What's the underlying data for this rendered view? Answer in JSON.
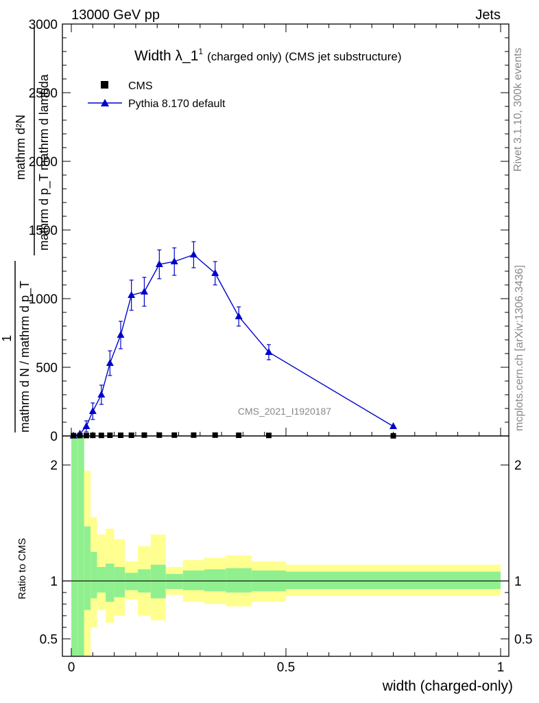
{
  "header": {
    "left": "13000 GeV pp",
    "right": "Jets"
  },
  "side": {
    "rivet": "Rivet 3.1.10,  300k events",
    "mcplots": "mcplots.cern.ch [arXiv:1306.3436]"
  },
  "watermark": "CMS_2021_I1920187",
  "colors": {
    "mc": "#0000cc",
    "band_inner": "#90f090",
    "band_outer": "#ffff90",
    "data": "#000000"
  },
  "chart_data": [
    {
      "type": "scatter",
      "title_main": "Width λ_1",
      "title_sup": "1",
      "title_rest": "(charged only) (CMS jet substructure)",
      "ylabel_num": "mathrm d²N",
      "ylabel_den": "mathrm d p_T mathrm d lambda",
      "ylabel_frac2_num": "1",
      "ylabel_frac2_den": "mathrm d N / mathrm d p_T",
      "xlim": [
        0,
        1
      ],
      "ylim": [
        0,
        3000
      ],
      "yticks": [
        0,
        500,
        1000,
        1500,
        2000,
        2500,
        3000
      ],
      "ytick_labels": [
        "0",
        "500",
        "1000",
        "1500",
        "2000",
        "2500",
        "3000"
      ],
      "legend_position": "top-left",
      "series": [
        {
          "name": "CMS",
          "marker": "square",
          "x": [
            0.005,
            0.02,
            0.035,
            0.05,
            0.07,
            0.09,
            0.115,
            0.14,
            0.17,
            0.205,
            0.24,
            0.285,
            0.335,
            0.39,
            0.46,
            0.75
          ],
          "y": [
            2,
            3,
            3,
            4,
            4,
            5,
            5,
            5,
            6,
            6,
            6,
            6,
            6,
            5,
            4,
            1
          ]
        },
        {
          "name": "Pythia 8.170 default",
          "marker": "triangle",
          "x": [
            0.005,
            0.02,
            0.035,
            0.05,
            0.07,
            0.09,
            0.115,
            0.14,
            0.17,
            0.205,
            0.24,
            0.285,
            0.335,
            0.39,
            0.46,
            0.75
          ],
          "y": [
            2,
            15,
            70,
            180,
            300,
            530,
            735,
            1025,
            1050,
            1250,
            1270,
            1320,
            1185,
            870,
            610,
            70
          ],
          "err": [
            2,
            10,
            40,
            60,
            70,
            90,
            100,
            110,
            105,
            105,
            100,
            95,
            85,
            70,
            55,
            10
          ]
        }
      ]
    },
    {
      "type": "area",
      "ylabel": "Ratio to CMS",
      "xlabel": "width (charged-only)",
      "xlim": [
        0,
        1
      ],
      "ylim": [
        0.35,
        2.25
      ],
      "xticks": [
        0,
        0.5,
        1
      ],
      "xtick_labels": [
        "0",
        "0.5",
        "1"
      ],
      "yticks": [
        0.5,
        1,
        2
      ],
      "ytick_labels": [
        "0.5",
        "1",
        "2"
      ],
      "bins": [
        {
          "x0": 0.0,
          "x1": 0.015,
          "in_lo": 0.35,
          "in_hi": 2.25,
          "out_lo": 0.35,
          "out_hi": 2.25
        },
        {
          "x0": 0.015,
          "x1": 0.03,
          "in_lo": 0.35,
          "in_hi": 2.25,
          "out_lo": 0.35,
          "out_hi": 2.25
        },
        {
          "x0": 0.03,
          "x1": 0.045,
          "in_lo": 0.75,
          "in_hi": 1.47,
          "out_lo": 0.35,
          "out_hi": 1.95
        },
        {
          "x0": 0.045,
          "x1": 0.06,
          "in_lo": 0.85,
          "in_hi": 1.25,
          "out_lo": 0.6,
          "out_hi": 1.55
        },
        {
          "x0": 0.06,
          "x1": 0.08,
          "in_lo": 0.9,
          "in_hi": 1.12,
          "out_lo": 0.75,
          "out_hi": 1.4
        },
        {
          "x0": 0.08,
          "x1": 0.1,
          "in_lo": 0.82,
          "in_hi": 1.15,
          "out_lo": 0.64,
          "out_hi": 1.45
        },
        {
          "x0": 0.1,
          "x1": 0.125,
          "in_lo": 0.86,
          "in_hi": 1.12,
          "out_lo": 0.7,
          "out_hi": 1.36
        },
        {
          "x0": 0.125,
          "x1": 0.155,
          "in_lo": 0.92,
          "in_hi": 1.07,
          "out_lo": 0.84,
          "out_hi": 1.17
        },
        {
          "x0": 0.155,
          "x1": 0.185,
          "in_lo": 0.9,
          "in_hi": 1.1,
          "out_lo": 0.7,
          "out_hi": 1.3
        },
        {
          "x0": 0.185,
          "x1": 0.22,
          "in_lo": 0.85,
          "in_hi": 1.14,
          "out_lo": 0.66,
          "out_hi": 1.4
        },
        {
          "x0": 0.22,
          "x1": 0.26,
          "in_lo": 0.93,
          "in_hi": 1.06,
          "out_lo": 0.88,
          "out_hi": 1.12
        },
        {
          "x0": 0.26,
          "x1": 0.31,
          "in_lo": 0.92,
          "in_hi": 1.09,
          "out_lo": 0.82,
          "out_hi": 1.18
        },
        {
          "x0": 0.31,
          "x1": 0.36,
          "in_lo": 0.91,
          "in_hi": 1.1,
          "out_lo": 0.8,
          "out_hi": 1.2
        },
        {
          "x0": 0.36,
          "x1": 0.42,
          "in_lo": 0.9,
          "in_hi": 1.11,
          "out_lo": 0.78,
          "out_hi": 1.22
        },
        {
          "x0": 0.42,
          "x1": 0.5,
          "in_lo": 0.91,
          "in_hi": 1.09,
          "out_lo": 0.82,
          "out_hi": 1.17
        },
        {
          "x0": 0.5,
          "x1": 1.0,
          "in_lo": 0.93,
          "in_hi": 1.08,
          "out_lo": 0.87,
          "out_hi": 1.14
        }
      ]
    }
  ]
}
